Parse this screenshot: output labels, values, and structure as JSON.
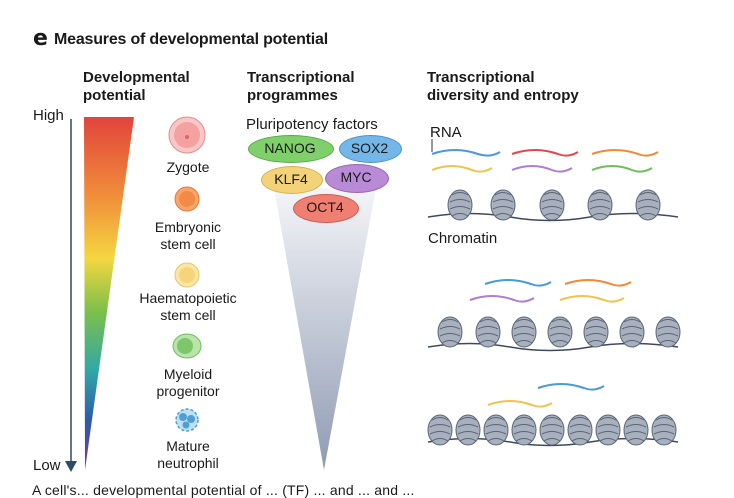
{
  "panel": {
    "letter": "e",
    "title": "Measures of developmental potential"
  },
  "potential": {
    "heading_line1": "Developmental",
    "heading_line2": "potential",
    "high_label": "High",
    "low_label": "Low",
    "cells": [
      {
        "line1": "Zygote",
        "line2": "",
        "color": "#f4a7a7",
        "icon": "zygote-icon"
      },
      {
        "line1": "Embryonic",
        "line2": "stem cell",
        "color": "#f48a4a",
        "icon": "embryonic-stem-cell-icon"
      },
      {
        "line1": "Haematopoietic",
        "line2": "stem cell",
        "color": "#f7d67a",
        "icon": "haematopoietic-stem-cell-icon"
      },
      {
        "line1": "Myeloid",
        "line2": "progenitor",
        "color": "#8fd07e",
        "icon": "myeloid-progenitor-icon"
      },
      {
        "line1": "Mature",
        "line2": "neutrophil",
        "color": "#6fb6e0",
        "icon": "neutrophil-icon"
      }
    ]
  },
  "programmes": {
    "heading_line1": "Transcriptional",
    "heading_line2": "programmes",
    "pluripotency_label": "Pluripotency factors",
    "factors": {
      "nanog": {
        "label": "NANOG",
        "color": "#7fcf6b"
      },
      "sox2": {
        "label": "SOX2",
        "color": "#73b7e8"
      },
      "klf4": {
        "label": "KLF4",
        "color": "#f3d37a"
      },
      "myc": {
        "label": "MYC",
        "color": "#b98ad6"
      },
      "oct4": {
        "label": "OCT4",
        "color": "#ef7f72"
      }
    }
  },
  "diversity": {
    "heading_line1": "Transcriptional",
    "heading_line2": "diversity and entropy",
    "rna_label": "RNA",
    "chromatin_label": "Chromatin"
  },
  "caption_fragment": "A cell's... developmental potential of ... (TF) ... and ... and ..."
}
